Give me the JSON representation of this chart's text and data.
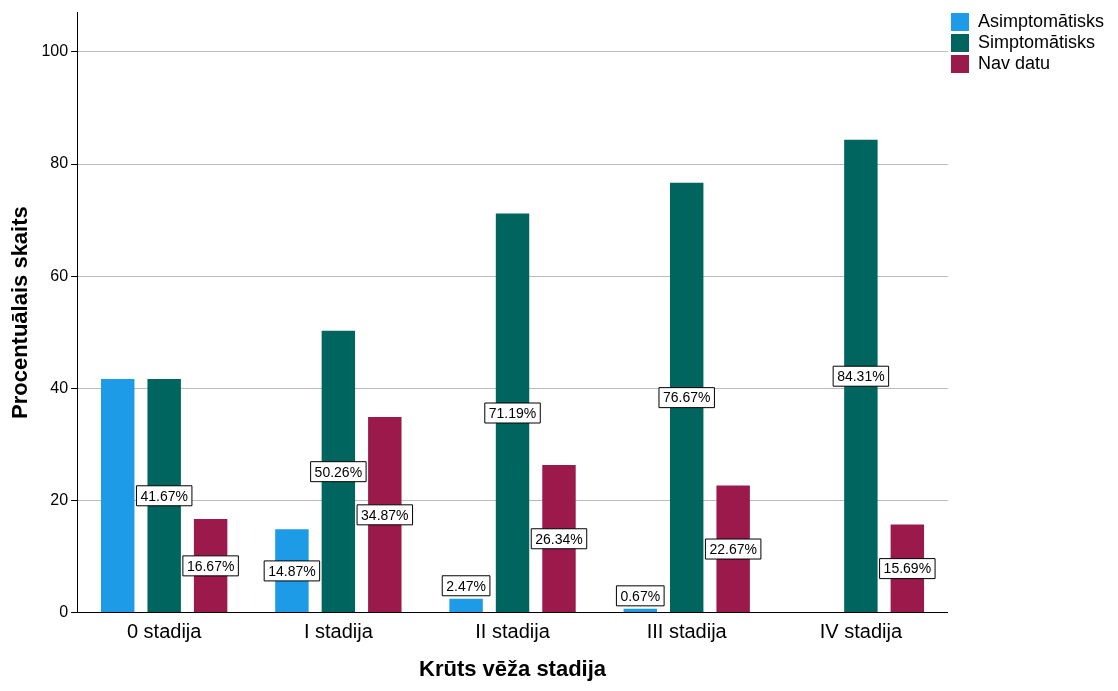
{
  "chart_data": {
    "type": "bar",
    "xlabel": "Krūts vēža stadija",
    "ylabel": "Procentuālais skaits",
    "categories": [
      "0 stadija",
      "I stadija",
      "II stadija",
      "III stadija",
      "IV stadija"
    ],
    "series": [
      {
        "name": "Asimptomātisks",
        "color": "#1e9be6",
        "values": [
          41.67,
          14.87,
          2.47,
          0.67,
          null
        ],
        "value_labels": [
          null,
          "14.87%",
          "2.47%",
          "0.67%",
          null
        ]
      },
      {
        "name": "Simptomātisks",
        "color": "#00645f",
        "values": [
          41.67,
          50.26,
          71.19,
          76.67,
          84.31
        ],
        "value_labels": [
          "41.67%",
          "50.26%",
          "71.19%",
          "76.67%",
          "84.31%"
        ]
      },
      {
        "name": "Nav datu",
        "color": "#9c1a4b",
        "values": [
          16.67,
          34.87,
          26.34,
          22.67,
          15.69
        ],
        "value_labels": [
          "16.67%",
          "34.87%",
          "26.34%",
          "22.67%",
          "15.69%"
        ]
      }
    ],
    "ylim": [
      0,
      107
    ],
    "yticks": [
      0,
      20,
      40,
      60,
      80,
      100
    ],
    "grid": "y",
    "legend": "top right"
  }
}
